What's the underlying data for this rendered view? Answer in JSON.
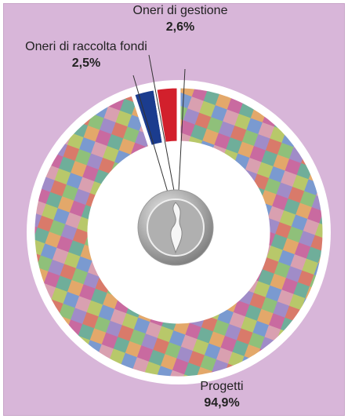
{
  "chart_data": {
    "type": "donut",
    "categories": [
      "Progetti",
      "Oneri di raccolta fondi",
      "Oneri di gestione"
    ],
    "values": [
      94.9,
      2.5,
      2.6
    ],
    "value_labels": [
      "94,9%",
      "2,5%",
      "2,6%"
    ],
    "colors": [
      "#8fb07a",
      "#1b3c8e",
      "#d2202c"
    ]
  }
}
